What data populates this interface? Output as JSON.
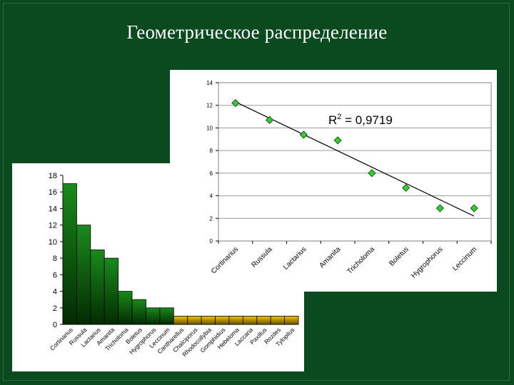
{
  "slide": {
    "title": "Геометрическое распределение"
  },
  "colors": {
    "background": "#0b4a1e",
    "bar_green_top": "#1a8a1a",
    "bar_green_bottom": "#022b02",
    "bar_gold_top": "#f5c400",
    "bar_gold_bottom": "#6b5200",
    "marker": "#33cc33",
    "trendline": "#000000"
  },
  "chart_data": [
    {
      "type": "bar",
      "title": "",
      "xlabel": "",
      "ylabel": "",
      "ylim": [
        0,
        18
      ],
      "yticks": [
        0,
        2,
        4,
        6,
        8,
        10,
        12,
        14,
        16,
        18
      ],
      "grid": false,
      "legend": "none",
      "categories": [
        "Cortinarius",
        "Russula",
        "Lactarius",
        "Amanita",
        "Tricholoma",
        "Boletus",
        "Hygrophorus",
        "Leccinum",
        "Cantharellus",
        "Chalciporus",
        "Rhodocollybia",
        "Gomphidius",
        "Hebeloma",
        "Laccaria",
        "Paxillus",
        "Rozites",
        "Tylopilus"
      ],
      "values": [
        17,
        12,
        9,
        8,
        4,
        3,
        2,
        2,
        1,
        1,
        1,
        1,
        1,
        1,
        1,
        1,
        1
      ],
      "bar_colors": [
        "green",
        "green",
        "green",
        "green",
        "green",
        "green",
        "green",
        "green",
        "gold",
        "gold",
        "gold",
        "gold",
        "gold",
        "gold",
        "gold",
        "gold",
        "gold"
      ]
    },
    {
      "type": "scatter",
      "title": "",
      "xlabel": "",
      "ylabel": "",
      "ylim": [
        0,
        14
      ],
      "yticks": [
        0,
        2,
        4,
        6,
        8,
        10,
        12,
        14
      ],
      "grid": true,
      "legend": "none",
      "categories": [
        "Cortinarius",
        "Russula",
        "Lactarius",
        "Amanita",
        "Tricholoma",
        "Boletus",
        "Hygrophorus",
        "Leccinum"
      ],
      "values": [
        12.2,
        10.7,
        9.4,
        8.9,
        6.0,
        4.7,
        2.9,
        2.9
      ],
      "trendline": {
        "type": "linear",
        "start": 12.3,
        "end": 2.2
      },
      "annotation": {
        "base": "R",
        "superscript": "2",
        "text": " = 0,9719"
      }
    }
  ]
}
